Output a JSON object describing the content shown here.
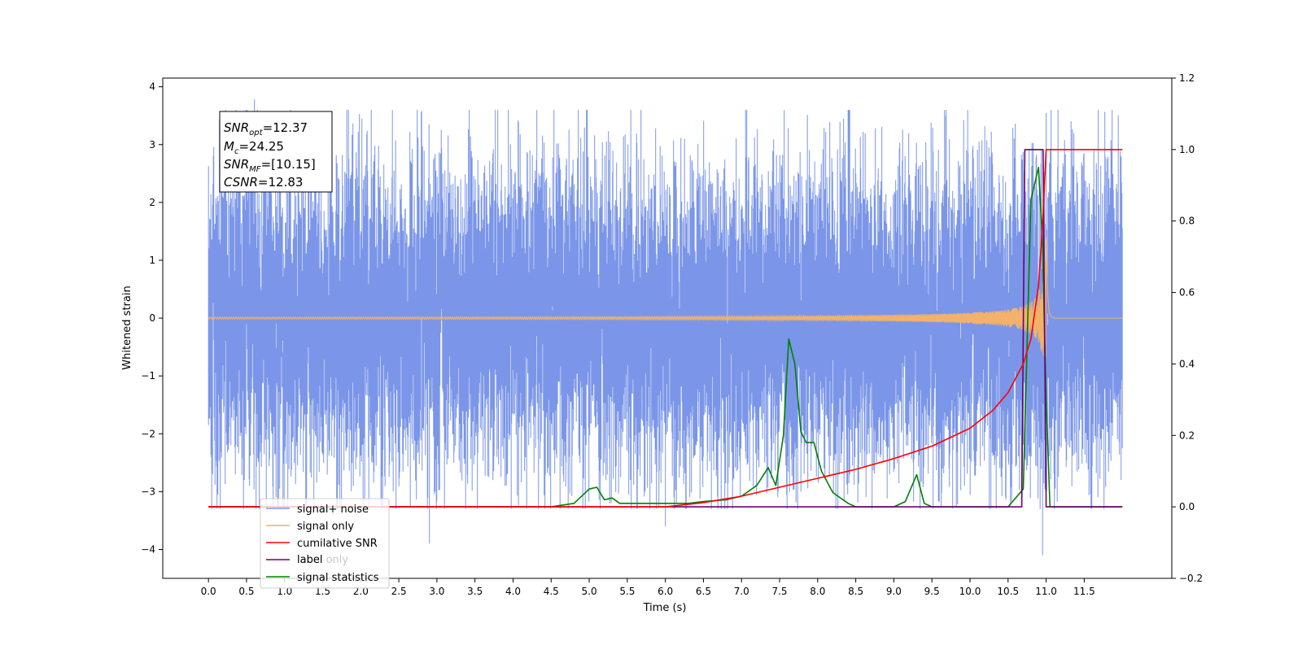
{
  "chart_data": {
    "type": "line",
    "xlabel": "Time (s)",
    "ylabel": "Whitened strain",
    "xlim": [
      -0.6,
      12.65
    ],
    "ylim": [
      -4.5,
      4.15
    ],
    "y2lim": [
      -0.2,
      1.2
    ],
    "x_ticks": [
      "0.0",
      "0.5",
      "1.0",
      "1.5",
      "2.0",
      "2.5",
      "3.0",
      "3.5",
      "4.0",
      "4.5",
      "5.0",
      "5.5",
      "6.0",
      "6.5",
      "7.0",
      "7.5",
      "8.0",
      "8.5",
      "9.0",
      "9.5",
      "10.0",
      "10.5",
      "11.0",
      "11.5"
    ],
    "y_ticks": [
      "4",
      "3",
      "2",
      "1",
      "0",
      "−1",
      "−2",
      "−3",
      "−4"
    ],
    "y2_ticks": [
      "1.2",
      "1.0",
      "0.8",
      "0.6",
      "0.4",
      "0.2",
      "0.0",
      "−0.2"
    ],
    "legend_location": "lower-left",
    "annotation": {
      "snr_opt": {
        "base": "SNR",
        "sub": "opt",
        "value": "=12.37"
      },
      "mc": {
        "base": "M",
        "sub": "c",
        "value": "=24.25"
      },
      "snr_mf": {
        "base": "SNR",
        "sub": "MF",
        "value": "=[10.15]"
      },
      "csnr": {
        "base": "CSNR",
        "value": "=12.83"
      }
    },
    "series": [
      {
        "name": "signal+ noise",
        "axis": "left",
        "color": "#7b96e8",
        "noise_range": [
          0.0,
          12.0
        ],
        "noise_sigma": 1.0,
        "peaks": [
          [
            0.6,
            3.78
          ],
          [
            0.54,
            -2.9
          ],
          [
            2.9,
            -3.9
          ],
          [
            6.0,
            -3.6
          ],
          [
            10.95,
            3.72
          ],
          [
            10.95,
            -4.1
          ],
          [
            11.0,
            3.55
          ]
        ]
      },
      {
        "name": "signal only",
        "axis": "left",
        "color": "#f2b26a",
        "x_range": [
          0.0,
          12.0
        ],
        "merger_time": 11.0,
        "peak_amplitude": 1.6
      },
      {
        "name": "cumilative SNR",
        "axis": "right",
        "color": "#ff0000",
        "x": [
          0.0,
          6.0,
          6.5,
          7.0,
          7.5,
          8.0,
          8.5,
          9.0,
          9.5,
          10.0,
          10.3,
          10.5,
          10.7,
          10.8,
          10.9,
          10.95,
          11.0,
          12.0
        ],
        "y": [
          0.0,
          0.0,
          0.012,
          0.03,
          0.055,
          0.08,
          0.105,
          0.135,
          0.17,
          0.22,
          0.27,
          0.32,
          0.4,
          0.47,
          0.62,
          0.78,
          1.0,
          1.0
        ]
      },
      {
        "name": "label",
        "axis": "right",
        "color": "#700070",
        "x": [
          0.0,
          10.68,
          10.72,
          10.96,
          11.0,
          12.0
        ],
        "y": [
          0.0,
          0.0,
          1.0,
          1.0,
          0.0,
          0.0
        ]
      },
      {
        "name": "label only",
        "axis": "right",
        "color": "#f2b26a",
        "hidden_line": true,
        "x": [],
        "y": []
      },
      {
        "name": "signal statistics",
        "axis": "right",
        "color": "#008000",
        "x": [
          0.0,
          2.5,
          3.0,
          3.5,
          3.8,
          4.0,
          4.5,
          4.8,
          5.0,
          5.1,
          5.2,
          5.3,
          5.4,
          5.5,
          5.8,
          6.0,
          6.3,
          6.5,
          6.8,
          7.0,
          7.2,
          7.35,
          7.45,
          7.55,
          7.62,
          7.7,
          7.78,
          7.85,
          7.95,
          8.05,
          8.2,
          8.4,
          8.5,
          9.0,
          9.15,
          9.3,
          9.4,
          9.5,
          10.0,
          10.5,
          10.7,
          10.8,
          10.9,
          10.95,
          11.0,
          11.05,
          12.0
        ],
        "y": [
          0.0,
          0.0,
          0.0,
          0.0,
          0.0,
          0.0,
          0.0,
          0.01,
          0.05,
          0.055,
          0.02,
          0.025,
          0.01,
          0.01,
          0.01,
          0.01,
          0.01,
          0.015,
          0.02,
          0.03,
          0.06,
          0.11,
          0.06,
          0.2,
          0.47,
          0.4,
          0.21,
          0.18,
          0.18,
          0.1,
          0.04,
          0.01,
          0.0,
          0.0,
          0.015,
          0.09,
          0.01,
          0.0,
          0.0,
          0.0,
          0.05,
          0.86,
          0.95,
          0.75,
          0.3,
          0.0,
          0.0
        ]
      }
    ]
  }
}
